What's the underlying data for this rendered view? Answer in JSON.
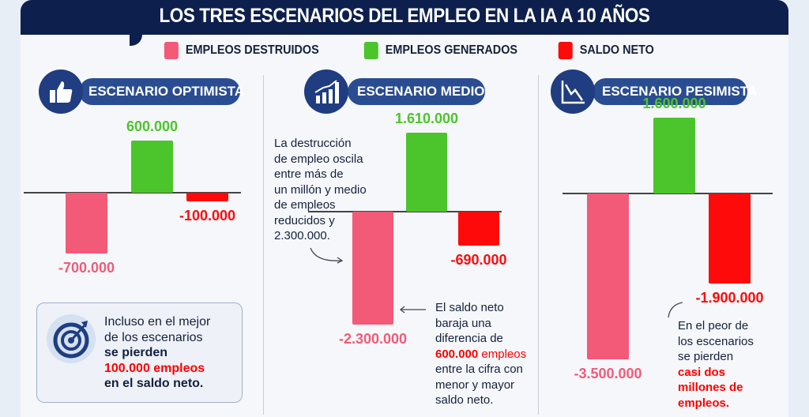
{
  "title": "LOS TRES ESCENARIOS DEL EMPLEO EN LA IA A 10 AÑOS",
  "colors": {
    "destroyed": "#f25a78",
    "generated": "#4cc42c",
    "net": "#ff0a0a",
    "navy": "#0d1f4c"
  },
  "legend": [
    {
      "label": "EMPLEOS DESTRUIDOS",
      "color": "#f25a78"
    },
    {
      "label": "EMPLEOS GENERADOS",
      "color": "#4cc42c"
    },
    {
      "label": "SALDO NETO",
      "color": "#ff0a0a"
    }
  ],
  "chart_data": [
    {
      "type": "bar",
      "title": "ESCENARIO OPTIMISTA",
      "icon": "thumbs-up-icon",
      "categories": [
        "Empleos destruidos",
        "Empleos generados",
        "Saldo neto"
      ],
      "values": [
        -700000,
        600000,
        -100000
      ],
      "labels": [
        "-700.000",
        "600.000",
        "-100.000"
      ]
    },
    {
      "type": "bar",
      "title": "ESCENARIO MEDIO",
      "icon": "bar-chart-growth-icon",
      "categories": [
        "Empleos destruidos",
        "Empleos generados",
        "Saldo neto"
      ],
      "values": [
        -2300000,
        1610000,
        -690000
      ],
      "labels": [
        "-2.300.000",
        "1.610.000",
        "-690.000"
      ]
    },
    {
      "type": "bar",
      "title": "ESCENARIO PESIMISTA",
      "icon": "line-chart-decline-icon",
      "categories": [
        "Empleos destruidos",
        "Empleos generados",
        "Saldo neto"
      ],
      "values": [
        -3500000,
        1600000,
        -1900000
      ],
      "labels": [
        "-3.500.000",
        "1.600.000",
        "-1.900.000"
      ]
    }
  ],
  "notes": {
    "optimista": {
      "lines": [
        "Incluso en el mejor",
        "de los escenarios"
      ],
      "bold": "se pierden",
      "red": "100.000 empleos",
      "end": "en el saldo neto."
    },
    "medio_left": [
      "La destrucción",
      "de empleo oscila",
      "entre más de",
      "un millón y medio",
      "de empleos",
      "reducidos y",
      "2.300.000."
    ],
    "medio_right": {
      "lines": [
        "El saldo neto",
        "baraja una",
        "diferencia de"
      ],
      "red": "600.000",
      "red_light": " empleos",
      "end": [
        "entre la cifra con",
        "menor y mayor",
        "saldo neto."
      ]
    },
    "pesimista": {
      "lines": [
        "En el peor de",
        "los escenarios",
        "se pierden"
      ],
      "red": [
        "casi dos",
        "millones de",
        "empleos."
      ]
    }
  }
}
